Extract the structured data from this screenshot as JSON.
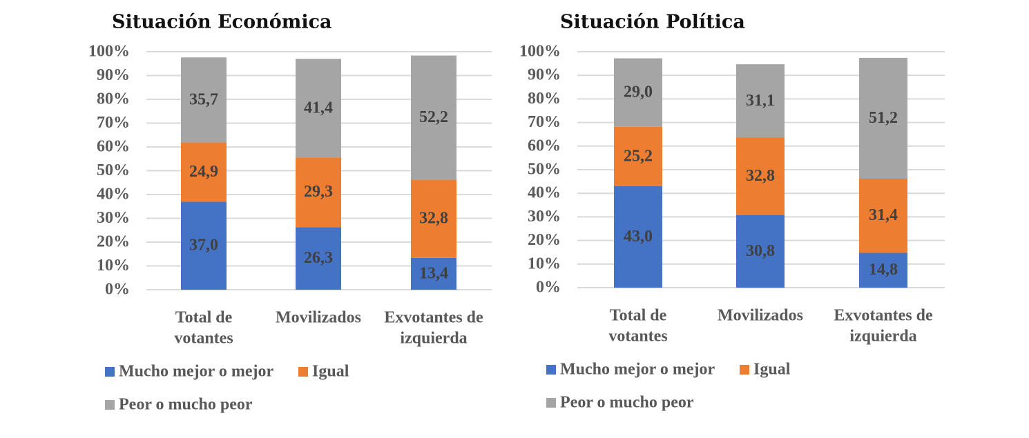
{
  "chart_data": [
    {
      "type": "bar",
      "stacked": true,
      "title": "Situación Económica",
      "categories": [
        [
          "Total de",
          "votantes"
        ],
        [
          "Movilizados"
        ],
        [
          "Exvotantes de",
          "izquierda"
        ]
      ],
      "series": [
        {
          "name": "Mucho mejor o mejor",
          "color": "#4472c4",
          "values": [
            37.0,
            26.3,
            13.4
          ],
          "labels": [
            "37,0",
            "26,3",
            "13,4"
          ]
        },
        {
          "name": "Igual",
          "color": "#ed7d31",
          "values": [
            24.9,
            29.3,
            32.8
          ],
          "labels": [
            "24,9",
            "29,3",
            "32,8"
          ]
        },
        {
          "name": "Peor o mucho peor",
          "color": "#a5a5a5",
          "values": [
            35.7,
            41.4,
            52.2
          ],
          "labels": [
            "35,7",
            "41,4",
            "52,2"
          ]
        }
      ],
      "yticks": [
        "0%",
        "10%",
        "20%",
        "30%",
        "40%",
        "50%",
        "60%",
        "70%",
        "80%",
        "90%",
        "100%"
      ],
      "ylim": [
        0,
        100
      ],
      "ylabel": "",
      "xlabel": "",
      "grid": true,
      "legend_position": "bottom"
    },
    {
      "type": "bar",
      "stacked": true,
      "title": "Situación Política",
      "categories": [
        [
          "Total de",
          "votantes"
        ],
        [
          "Movilizados"
        ],
        [
          "Exvotantes de",
          "izquierda"
        ]
      ],
      "series": [
        {
          "name": "Mucho mejor o mejor",
          "color": "#4472c4",
          "values": [
            43.0,
            30.8,
            14.8
          ],
          "labels": [
            "43,0",
            "30,8",
            "14,8"
          ]
        },
        {
          "name": "Igual",
          "color": "#ed7d31",
          "values": [
            25.2,
            32.8,
            31.4
          ],
          "labels": [
            "25,2",
            "32,8",
            "31,4"
          ]
        },
        {
          "name": "Peor o mucho peor",
          "color": "#a5a5a5",
          "values": [
            29.0,
            31.1,
            51.2
          ],
          "labels": [
            "29,0",
            "31,1",
            "51,2"
          ]
        }
      ],
      "yticks": [
        "0%",
        "10%",
        "20%",
        "30%",
        "40%",
        "50%",
        "60%",
        "70%",
        "80%",
        "90%",
        "100%"
      ],
      "ylim": [
        0,
        100
      ],
      "ylabel": "",
      "xlabel": "",
      "grid": true,
      "legend_position": "bottom"
    }
  ]
}
